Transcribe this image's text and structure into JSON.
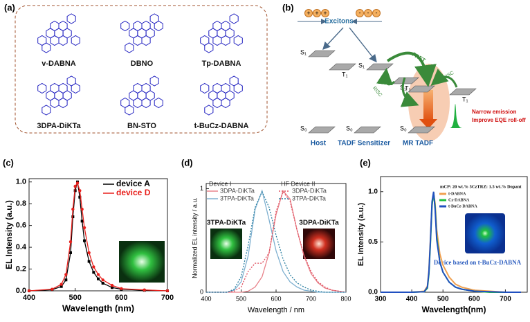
{
  "panel_a": {
    "label": "(a)",
    "molecules": [
      "v-DABNA",
      "DBNO",
      "Tp-DABNA",
      "3DPA-DiKTa",
      "BN-STO",
      "t-BuCz-DABNA"
    ]
  },
  "panel_b": {
    "label": "(b)",
    "excitons": "Excitons",
    "hole": "+",
    "electron": "-",
    "columns": [
      {
        "s1": "S₁",
        "t1": "T₁",
        "s0": "S₀",
        "name": "Host"
      },
      {
        "s1": "S₁",
        "t1": "T₁",
        "s0": "S₀",
        "name": "TADF Sensitizer",
        "risc": "RISC"
      },
      {
        "s1": "S₁",
        "t1": "T₁",
        "s0": "S₀",
        "name": "MR TADF",
        "risc": "RISC"
      }
    ],
    "fret": "FRET",
    "notes": [
      "Narrow emission",
      "Improve EQE roll-off"
    ]
  },
  "chart_data": [
    {
      "type": "line",
      "label": "(c)",
      "x_label": "Wavelength (nm)",
      "y_label": "EL Intensity (a.u.)",
      "x": [
        400,
        450,
        470,
        480,
        490,
        495,
        500,
        505,
        510,
        515,
        520,
        530,
        540,
        550,
        560,
        580,
        600,
        650,
        700
      ],
      "series": [
        {
          "name": "device A",
          "color": "#000000",
          "marker": "square",
          "values": [
            0,
            0.01,
            0.04,
            0.1,
            0.35,
            0.68,
            0.92,
            1.0,
            0.86,
            0.64,
            0.46,
            0.27,
            0.17,
            0.11,
            0.07,
            0.03,
            0.015,
            0.005,
            0
          ]
        },
        {
          "name": "device D",
          "color": "#e8201c",
          "marker": "circle",
          "values": [
            0,
            0.015,
            0.06,
            0.15,
            0.45,
            0.75,
            0.96,
            0.99,
            0.92,
            0.75,
            0.58,
            0.35,
            0.22,
            0.15,
            0.1,
            0.05,
            0.02,
            0.008,
            0
          ]
        }
      ],
      "xlim": [
        400,
        700
      ],
      "xticks": [
        400,
        500,
        600,
        700
      ],
      "ylim": [
        0,
        1.03
      ],
      "yticks": [
        {
          "value": 0,
          "label": "0.0"
        },
        {
          "value": 0.2,
          "label": "0.2"
        },
        {
          "value": 0.4,
          "label": "0.4"
        },
        {
          "value": 0.6,
          "label": "0.6"
        },
        {
          "value": 0.8,
          "label": "0.8"
        },
        {
          "value": 1,
          "label": "1.0"
        }
      ]
    },
    {
      "type": "line",
      "label": "(d)",
      "x_label": "Wavelength / nm",
      "y_label": "Normalized EL intensity / a.u.",
      "legend_titles": [
        "Device I",
        "HF Device II"
      ],
      "annotations": [
        "3TPA-DiKTa",
        "3DPA-DiKTa"
      ],
      "x": [
        400,
        420,
        440,
        460,
        480,
        500,
        520,
        540,
        560,
        580,
        600,
        620,
        640,
        660,
        680,
        700,
        720,
        740,
        760,
        780,
        800
      ],
      "series": [
        {
          "name": "3DPA-DiKTa",
          "color": "#e8828a",
          "dashed": false,
          "values": [
            0,
            0,
            0,
            0,
            0,
            0,
            0.01,
            0.05,
            0.15,
            0.38,
            0.75,
            0.98,
            0.9,
            0.6,
            0.35,
            0.18,
            0.09,
            0.04,
            0.02,
            0.01,
            0
          ]
        },
        {
          "name": "3TPA-DiKTa",
          "color": "#7fb0d0",
          "dashed": false,
          "values": [
            0,
            0,
            0,
            0,
            0.02,
            0.1,
            0.35,
            0.8,
            0.98,
            0.7,
            0.4,
            0.2,
            0.1,
            0.05,
            0.02,
            0.01,
            0,
            0,
            0,
            0,
            0
          ]
        },
        {
          "name": "3DPA-DiKTa",
          "color": "#e05060",
          "dashed": true,
          "values": [
            0,
            0,
            0,
            0,
            0.01,
            0.05,
            0.2,
            0.28,
            0.28,
            0.38,
            0.78,
            0.97,
            0.88,
            0.6,
            0.36,
            0.2,
            0.1,
            0.05,
            0.02,
            0.01,
            0
          ]
        },
        {
          "name": "3TPA-DiKTa",
          "color": "#2a7fa0",
          "dashed": true,
          "values": [
            0,
            0,
            0,
            0,
            0.03,
            0.15,
            0.45,
            0.82,
            0.97,
            0.82,
            0.55,
            0.32,
            0.17,
            0.09,
            0.05,
            0.02,
            0.01,
            0,
            0,
            0,
            0
          ]
        }
      ],
      "xlim": [
        400,
        800
      ],
      "xticks": [
        400,
        500,
        600,
        700,
        800
      ],
      "ylim": [
        0,
        1.05
      ],
      "yticks": [
        0,
        1
      ]
    },
    {
      "type": "line",
      "label": "(e)",
      "x_label": "Wavelength(nm)",
      "y_label": "EL Intensity (a.u.)",
      "legend_title": "mCP: 20 wt.% 5CzTRZ: 1.5 wt.% Dopant",
      "annotations": [
        "Device based on t-BuCz-DABNA"
      ],
      "x": [
        300,
        400,
        440,
        450,
        455,
        460,
        465,
        470,
        475,
        480,
        490,
        500,
        520,
        540,
        560,
        600,
        650,
        700,
        750
      ],
      "series": [
        {
          "name": "t-DABNA",
          "color": "#f0a050",
          "values": [
            0,
            0,
            0.01,
            0.06,
            0.22,
            0.55,
            0.88,
            0.98,
            0.88,
            0.62,
            0.38,
            0.27,
            0.15,
            0.08,
            0.05,
            0.02,
            0.01,
            0,
            0
          ]
        },
        {
          "name": "Cz-DABNA",
          "color": "#20c040",
          "values": [
            0,
            0,
            0.005,
            0.04,
            0.18,
            0.5,
            0.86,
            0.99,
            0.85,
            0.55,
            0.3,
            0.2,
            0.1,
            0.05,
            0.03,
            0.01,
            0,
            0,
            0
          ]
        },
        {
          "name": "t-BuCz-DABNA",
          "color": "#2050c0",
          "values": [
            0,
            0,
            0.005,
            0.05,
            0.2,
            0.53,
            0.9,
            1.0,
            0.82,
            0.52,
            0.3,
            0.2,
            0.1,
            0.05,
            0.03,
            0.01,
            0.005,
            0,
            0
          ]
        }
      ],
      "xlim": [
        300,
        770
      ],
      "xticks": [
        300,
        400,
        500,
        600,
        700
      ],
      "ylim": [
        0,
        1.15
      ],
      "yticks": [
        {
          "value": 0,
          "label": "0.0"
        },
        {
          "value": 0.5,
          "label": "0.5"
        },
        {
          "value": 1,
          "label": "1.0"
        }
      ]
    }
  ]
}
